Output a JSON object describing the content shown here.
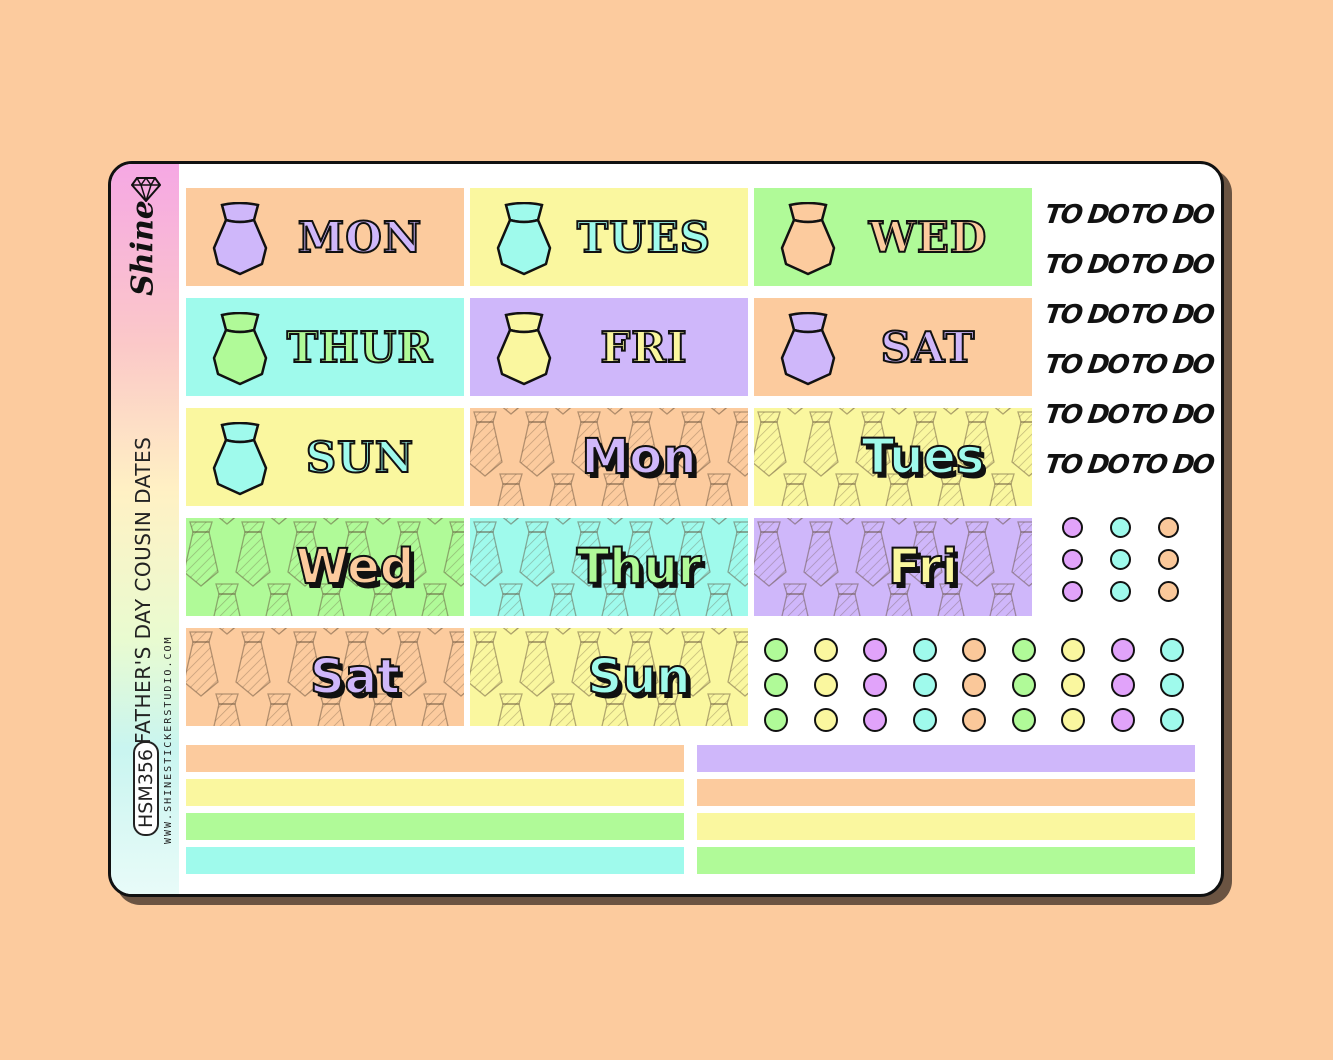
{
  "colors": {
    "orange": "#fccb9e",
    "yellow": "#faf79f",
    "green": "#b0fa98",
    "aqua": "#9ffaec",
    "purple": "#cfb7fa",
    "dotPurple": "#e1a3fa",
    "dotOrange": "#fac89a"
  },
  "brand": {
    "name": "Shine",
    "code": "HSM356",
    "title": "FATHER'S DAY COUSIN DATES",
    "url": "WWW.SHINESTICKERSTUDIO.COM"
  },
  "serif_tiles": [
    {
      "label": "MON",
      "bg": "#fccb9e",
      "tie": "#cfb7fa",
      "text": "#cfb7fa"
    },
    {
      "label": "TUES",
      "bg": "#faf79f",
      "tie": "#9ffaec",
      "text": "#9ffaec"
    },
    {
      "label": "WED",
      "bg": "#b0fa98",
      "tie": "#fccb9e",
      "text": "#fccb9e"
    },
    {
      "label": "THUR",
      "bg": "#9ffaec",
      "tie": "#b0fa98",
      "text": "#b0fa98"
    },
    {
      "label": "FRI",
      "bg": "#cfb7fa",
      "tie": "#faf79f",
      "text": "#faf79f"
    },
    {
      "label": "SAT",
      "bg": "#fccb9e",
      "tie": "#cfb7fa",
      "text": "#cfb7fa"
    },
    {
      "label": "SUN",
      "bg": "#faf79f",
      "tie": "#9ffaec",
      "text": "#9ffaec"
    }
  ],
  "pattern_tiles": [
    {
      "label": "Mon",
      "bg": "#fccb9e",
      "text": "#cfb7fa"
    },
    {
      "label": "Tues",
      "bg": "#faf79f",
      "text": "#9ffaec"
    },
    {
      "label": "Wed",
      "bg": "#b0fa98",
      "text": "#fccb9e"
    },
    {
      "label": "Thur",
      "bg": "#9ffaec",
      "text": "#b0fa98"
    },
    {
      "label": "Fri",
      "bg": "#cfb7fa",
      "text": "#faf79f"
    },
    {
      "label": "Sat",
      "bg": "#fccb9e",
      "text": "#cfb7fa"
    },
    {
      "label": "Sun",
      "bg": "#faf79f",
      "text": "#9ffaec"
    }
  ],
  "todo_labels": [
    "TO DO",
    "TO DO",
    "TO DO",
    "TO DO",
    "TO DO",
    "TO DO",
    "TO DO",
    "TO DO",
    "TO DO",
    "TO DO",
    "TO DO",
    "TO DO"
  ],
  "dot_grid_small": [
    "#e1a3fa",
    "#9ffaec",
    "#fac89a",
    "#e1a3fa",
    "#9ffaec",
    "#fac89a",
    "#e1a3fa",
    "#9ffaec",
    "#fac89a"
  ],
  "dot_grid_large_columns": [
    "#b0fa98",
    "#faf79f",
    "#e1a3fa",
    "#9ffaec",
    "#fac89a",
    "#b0fa98",
    "#faf79f",
    "#e1a3fa",
    "#9ffaec"
  ],
  "strips_left": [
    "#fccb9e",
    "#faf79f",
    "#b0fa98",
    "#9ffaec"
  ],
  "strips_right": [
    "#cfb7fa",
    "#fccb9e",
    "#faf79f",
    "#b0fa98"
  ]
}
